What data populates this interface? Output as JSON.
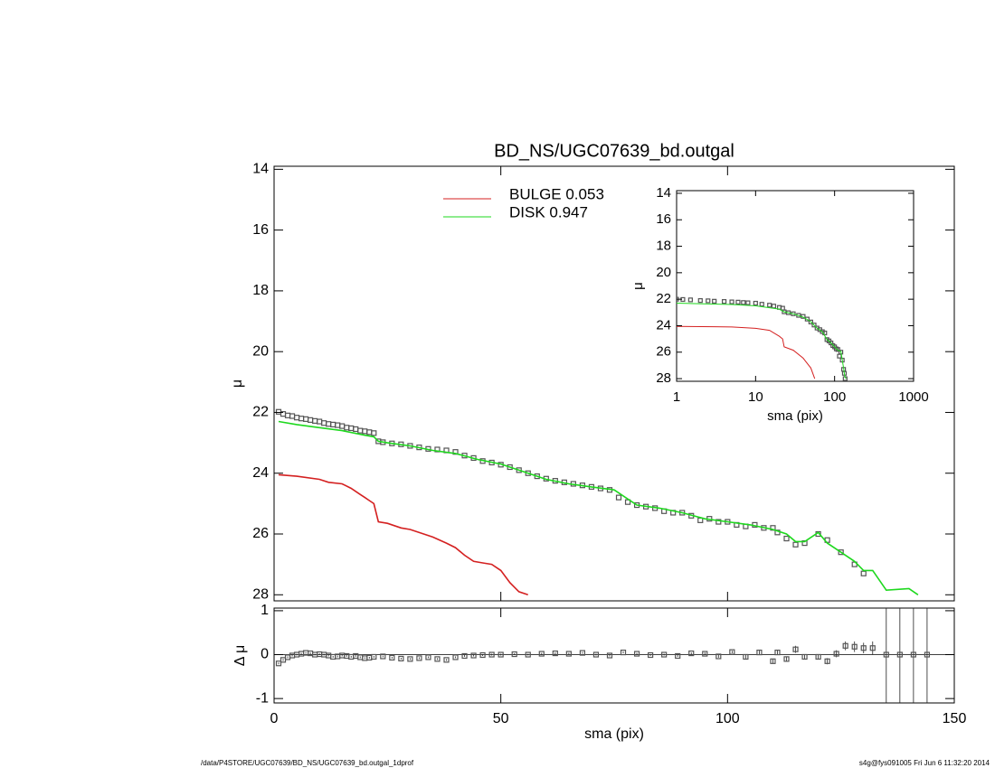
{
  "chart_data": [
    {
      "type": "line",
      "title": "BD_NS/UGC07639_bd.outgal",
      "ylabel": "μ",
      "xlim": [
        0,
        150
      ],
      "xticks": [
        0,
        50,
        100,
        150
      ],
      "ylim": [
        28.2,
        13.9
      ],
      "yticks": [
        14,
        16,
        18,
        20,
        22,
        24,
        26,
        28
      ],
      "series": [
        {
          "style": "markers",
          "color": "#555555",
          "x": [
            1,
            2,
            3,
            4,
            5,
            6,
            7,
            8,
            9,
            10,
            11,
            12,
            13,
            14,
            15,
            16,
            17,
            18,
            19,
            20,
            21,
            22,
            23,
            24,
            26,
            28,
            30,
            32,
            34,
            36,
            38,
            40,
            42,
            44,
            46,
            48,
            50,
            52,
            54,
            56,
            58,
            60,
            62,
            64,
            66,
            68,
            70,
            72,
            74,
            76,
            78,
            80,
            82,
            84,
            86,
            88,
            90,
            92,
            94,
            96,
            98,
            100,
            102,
            104,
            106,
            108,
            110,
            111,
            113,
            115,
            117,
            120,
            122,
            125,
            128,
            130
          ],
          "values": [
            21.98,
            22.05,
            22.1,
            22.12,
            22.17,
            22.2,
            22.22,
            22.25,
            22.28,
            22.3,
            22.35,
            22.38,
            22.4,
            22.42,
            22.45,
            22.5,
            22.52,
            22.55,
            22.6,
            22.62,
            22.65,
            22.68,
            22.95,
            22.98,
            23.02,
            23.05,
            23.1,
            23.15,
            23.2,
            23.22,
            23.25,
            23.3,
            23.42,
            23.5,
            23.6,
            23.65,
            23.72,
            23.8,
            23.9,
            24.0,
            24.1,
            24.18,
            24.25,
            24.3,
            24.35,
            24.4,
            24.45,
            24.5,
            24.55,
            24.8,
            24.95,
            25.05,
            25.1,
            25.15,
            25.25,
            25.3,
            25.3,
            25.4,
            25.55,
            25.5,
            25.6,
            25.6,
            25.7,
            25.75,
            25.7,
            25.8,
            25.8,
            25.95,
            26.15,
            26.35,
            26.3,
            26.0,
            26.2,
            26.6,
            27.0,
            27.3
          ]
        },
        {
          "style": "line",
          "name": "BULGE  0.053",
          "color": "#d42020",
          "x": [
            1,
            5,
            10,
            12,
            15,
            17,
            19,
            20,
            21,
            22,
            23,
            25,
            28,
            30,
            33,
            35,
            38,
            40,
            42,
            44,
            46,
            48,
            50,
            52,
            54,
            56
          ],
          "values": [
            24.05,
            24.1,
            24.2,
            24.3,
            24.35,
            24.5,
            24.7,
            24.8,
            24.9,
            25.0,
            25.6,
            25.65,
            25.8,
            25.85,
            26.0,
            26.1,
            26.3,
            26.45,
            26.7,
            26.9,
            26.95,
            27.0,
            27.2,
            27.6,
            27.9,
            28.0
          ]
        },
        {
          "style": "line",
          "name": "DISK  0.947",
          "color": "#1ed81e",
          "x": [
            1,
            5,
            10,
            15,
            20,
            22,
            23,
            25,
            30,
            35,
            40,
            45,
            50,
            55,
            60,
            65,
            70,
            75,
            80,
            85,
            90,
            95,
            100,
            105,
            110,
            113,
            115,
            117,
            120,
            122,
            125,
            128,
            130,
            132,
            135,
            140,
            142
          ],
          "values": [
            22.3,
            22.4,
            22.5,
            22.6,
            22.75,
            22.8,
            22.95,
            23.0,
            23.1,
            23.25,
            23.35,
            23.55,
            23.7,
            23.95,
            24.2,
            24.35,
            24.45,
            24.55,
            25.05,
            25.15,
            25.3,
            25.5,
            25.6,
            25.7,
            25.85,
            26.0,
            26.25,
            26.25,
            25.95,
            26.3,
            26.6,
            26.9,
            27.2,
            27.2,
            27.85,
            27.8,
            28.0
          ]
        }
      ]
    },
    {
      "type": "scatter",
      "xlabel": "sma (pix)",
      "ylabel": "Δ μ",
      "xlim": [
        0,
        150
      ],
      "xticks": [
        0,
        50,
        100,
        150
      ],
      "ylim": [
        -1.1,
        1.06
      ],
      "yticks": [
        -1,
        0,
        1
      ],
      "series": [
        {
          "color": "#555555",
          "x": [
            1,
            2,
            3,
            4,
            5,
            6,
            7,
            8,
            9,
            10,
            11,
            12,
            13,
            14,
            15,
            16,
            17,
            18,
            19,
            20,
            21,
            22,
            24,
            26,
            28,
            30,
            32,
            34,
            36,
            38,
            40,
            42,
            44,
            46,
            48,
            50,
            53,
            56,
            59,
            62,
            65,
            68,
            71,
            74,
            77,
            80,
            83,
            86,
            89,
            92,
            95,
            98,
            101,
            104,
            107,
            110,
            111,
            113,
            115,
            117,
            120,
            122,
            124,
            126,
            128,
            130,
            132,
            135,
            138,
            141,
            144
          ],
          "values": [
            -0.2,
            -0.12,
            -0.06,
            -0.02,
            0,
            0.02,
            0.04,
            0.03,
            0.0,
            0.01,
            0.0,
            -0.02,
            -0.05,
            -0.04,
            -0.02,
            -0.03,
            -0.05,
            -0.03,
            -0.06,
            -0.08,
            -0.07,
            -0.05,
            -0.04,
            -0.07,
            -0.09,
            -0.1,
            -0.08,
            -0.06,
            -0.1,
            -0.12,
            -0.06,
            -0.03,
            -0.02,
            -0.01,
            0,
            0,
            0.01,
            0.0,
            0.02,
            0.03,
            0.02,
            0.04,
            0.0,
            -0.02,
            0.05,
            0.02,
            -0.01,
            0.0,
            -0.03,
            0.03,
            0.02,
            -0.04,
            0.06,
            -0.05,
            0.05,
            -0.15,
            0.05,
            -0.1,
            0.12,
            -0.05,
            -0.05,
            -0.15,
            0.02,
            0.2,
            0.18,
            0.15,
            0.15,
            0,
            0,
            0,
            0
          ],
          "errors": [
            0.02,
            0.02,
            0.02,
            0.02,
            0.02,
            0.02,
            0.02,
            0.02,
            0.02,
            0.02,
            0.02,
            0.02,
            0.02,
            0.02,
            0.02,
            0.02,
            0.02,
            0.02,
            0.02,
            0.02,
            0.02,
            0.02,
            0.02,
            0.02,
            0.02,
            0.02,
            0.02,
            0.02,
            0.02,
            0.02,
            0.02,
            0.02,
            0.02,
            0.02,
            0.02,
            0.02,
            0.02,
            0.02,
            0.02,
            0.02,
            0.02,
            0.02,
            0.02,
            0.02,
            0.02,
            0.02,
            0.02,
            0.02,
            0.02,
            0.02,
            0.03,
            0.03,
            0.03,
            0.04,
            0.04,
            0.05,
            0.05,
            0.05,
            0.08,
            0.06,
            0.06,
            0.07,
            0.08,
            0.1,
            0.12,
            0.12,
            0.15,
            3,
            3,
            3,
            3
          ]
        }
      ]
    },
    {
      "type": "line",
      "xlabel": "sma (pix)",
      "ylabel": "μ",
      "xlog": true,
      "xlim": [
        1,
        1000
      ],
      "xticks": [
        1,
        10,
        100,
        1000
      ],
      "ylim": [
        28.2,
        13.8
      ],
      "yticks": [
        14,
        16,
        18,
        20,
        22,
        24,
        26,
        28
      ],
      "series": [
        {
          "style": "markers",
          "color": "#555555",
          "x": [
            1,
            1.2,
            1.5,
            2,
            2.5,
            3,
            4,
            5,
            6,
            7,
            8,
            10,
            12,
            15,
            17,
            20,
            22,
            23,
            26,
            30,
            35,
            40,
            45,
            50,
            55,
            60,
            65,
            70,
            75,
            80,
            85,
            90,
            95,
            100,
            105,
            110,
            115,
            120,
            125,
            130,
            133,
            136
          ],
          "values": [
            22.0,
            22.02,
            22.05,
            22.1,
            22.12,
            22.15,
            22.17,
            22.2,
            22.22,
            22.25,
            22.27,
            22.3,
            22.38,
            22.45,
            22.52,
            22.62,
            22.68,
            22.95,
            23.02,
            23.1,
            23.22,
            23.3,
            23.5,
            23.72,
            23.95,
            24.18,
            24.3,
            24.45,
            24.55,
            25.05,
            25.15,
            25.3,
            25.5,
            25.6,
            25.75,
            25.8,
            26.3,
            26.0,
            26.6,
            27.3,
            27.6,
            28.0
          ]
        },
        {
          "style": "line",
          "color": "#d42020",
          "x": [
            1,
            3,
            5,
            10,
            15,
            20,
            22,
            23,
            30,
            40,
            50,
            56
          ],
          "values": [
            24.05,
            24.08,
            24.1,
            24.2,
            24.35,
            24.8,
            25.0,
            25.6,
            25.85,
            26.45,
            27.2,
            28.0
          ]
        },
        {
          "style": "line",
          "color": "#1ed81e",
          "x": [
            1,
            5,
            10,
            20,
            23,
            30,
            40,
            50,
            60,
            70,
            80,
            90,
            100,
            110,
            120,
            130,
            135,
            140
          ],
          "values": [
            22.3,
            22.4,
            22.5,
            22.75,
            22.95,
            23.1,
            23.35,
            23.7,
            24.2,
            24.45,
            25.05,
            25.3,
            25.6,
            25.85,
            25.95,
            27.2,
            27.85,
            28.0
          ]
        }
      ]
    }
  ],
  "footer": {
    "left": "/data/P4STORE/UGC07639/BD_NS/UGC07639_bd.outgal_1dprof",
    "right": "s4g@fys091005  Fri Jun  6 11:32:20 2014"
  }
}
